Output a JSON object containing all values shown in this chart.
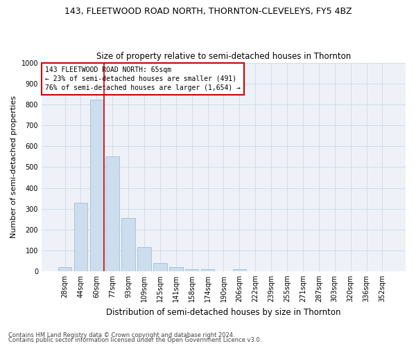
{
  "title": "143, FLEETWOOD ROAD NORTH, THORNTON-CLEVELEYS, FY5 4BZ",
  "subtitle": "Size of property relative to semi-detached houses in Thornton",
  "xlabel": "Distribution of semi-detached houses by size in Thornton",
  "ylabel": "Number of semi-detached properties",
  "footer1": "Contains HM Land Registry data © Crown copyright and database right 2024.",
  "footer2": "Contains public sector information licensed under the Open Government Licence v3.0.",
  "bar_labels": [
    "28sqm",
    "44sqm",
    "60sqm",
    "77sqm",
    "93sqm",
    "109sqm",
    "125sqm",
    "141sqm",
    "158sqm",
    "174sqm",
    "190sqm",
    "206sqm",
    "222sqm",
    "239sqm",
    "255sqm",
    "271sqm",
    "287sqm",
    "303sqm",
    "320sqm",
    "336sqm",
    "352sqm"
  ],
  "bar_values": [
    20,
    330,
    825,
    550,
    255,
    115,
    40,
    18,
    10,
    10,
    0,
    10,
    0,
    0,
    0,
    0,
    0,
    0,
    0,
    0,
    0
  ],
  "bar_color": "#ccdded",
  "bar_edgecolor": "#a8c4d8",
  "highlight_line_color": "#cc0000",
  "ylim": [
    0,
    1000
  ],
  "yticks": [
    0,
    100,
    200,
    300,
    400,
    500,
    600,
    700,
    800,
    900,
    1000
  ],
  "annotation_title": "143 FLEETWOOD ROAD NORTH: 65sqm",
  "annotation_line1": "← 23% of semi-detached houses are smaller (491)",
  "annotation_line2": "76% of semi-detached houses are larger (1,654) →",
  "annotation_box_color": "#ffffff",
  "annotation_box_edgecolor": "#cc0000",
  "grid_color": "#d0dcea",
  "background_color": "#eef2f8",
  "title_fontsize": 9,
  "subtitle_fontsize": 8.5,
  "ylabel_fontsize": 8,
  "xlabel_fontsize": 8.5,
  "tick_fontsize": 7,
  "annotation_fontsize": 7,
  "footer_fontsize": 6
}
